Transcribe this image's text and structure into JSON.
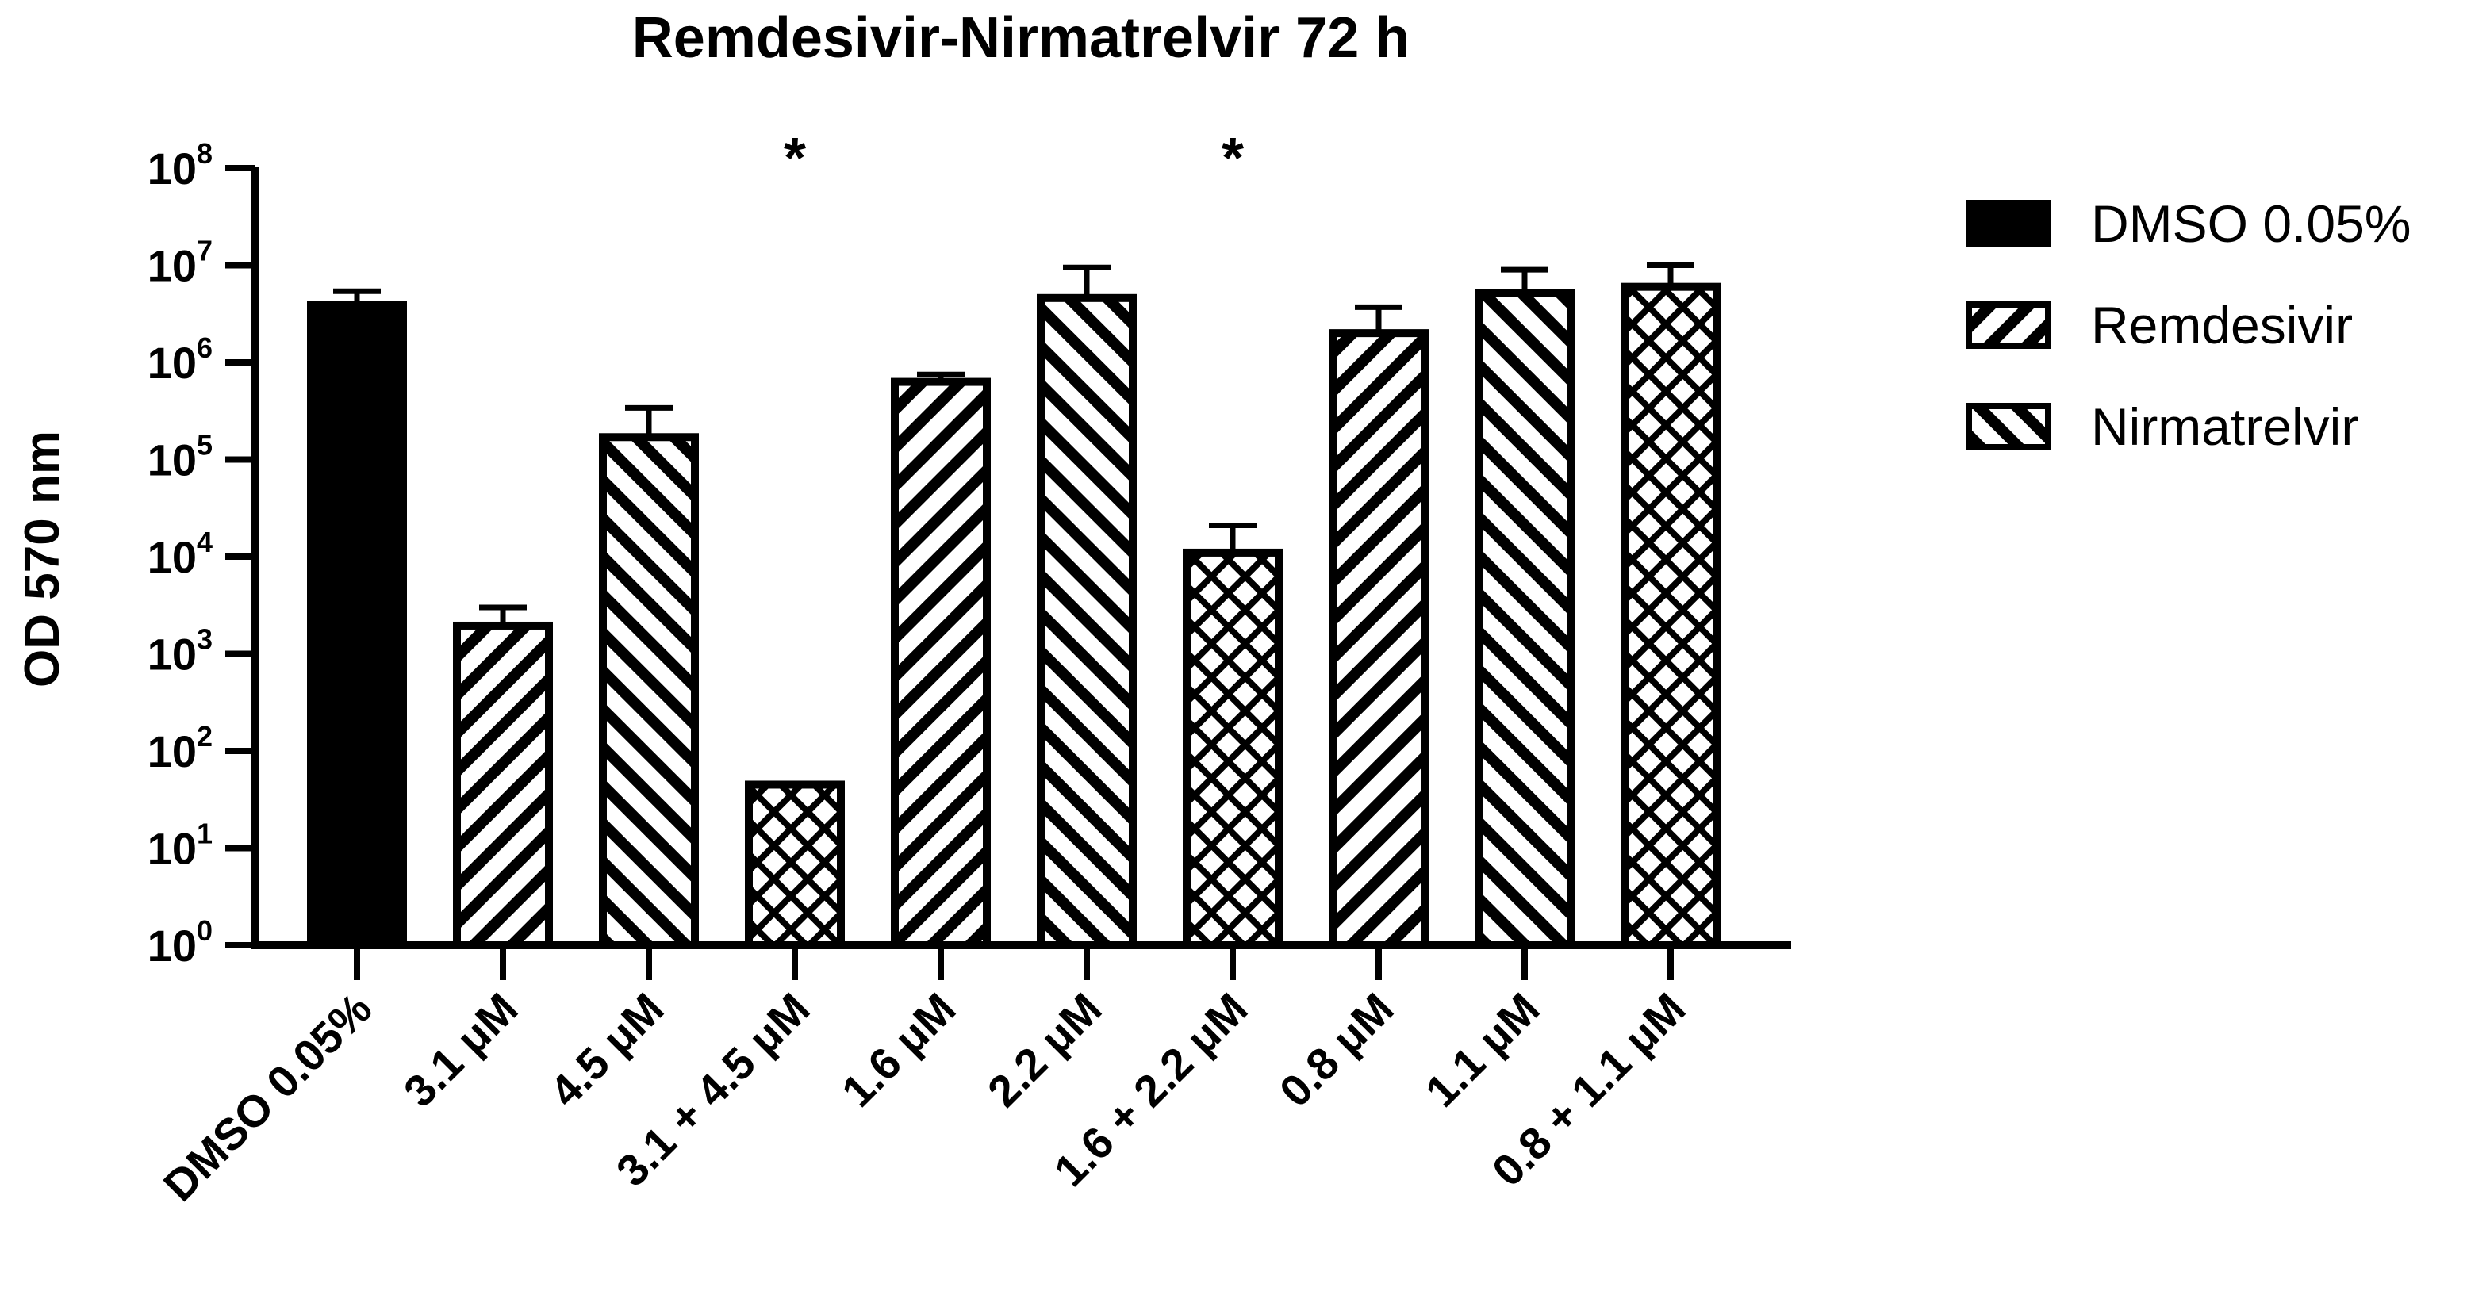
{
  "chart_data": {
    "type": "bar",
    "title": "Remdesivir-Nirmatrelvir 72 h",
    "ylabel": "OD 570 nm",
    "xlabel": "",
    "yscale": "log",
    "ylim": [
      1,
      100000000
    ],
    "yticks": [
      {
        "base": "10",
        "exp": "0"
      },
      {
        "base": "10",
        "exp": "1"
      },
      {
        "base": "10",
        "exp": "2"
      },
      {
        "base": "10",
        "exp": "3"
      },
      {
        "base": "10",
        "exp": "4"
      },
      {
        "base": "10",
        "exp": "5"
      },
      {
        "base": "10",
        "exp": "6"
      },
      {
        "base": "10",
        "exp": "7"
      },
      {
        "base": "10",
        "exp": "8"
      }
    ],
    "categories": [
      "DMSO 0.05%",
      "3.1 μM",
      "4.5 μM",
      "3.1 + 4.5 μM",
      "1.6 μM",
      "2.2 μM",
      "1.6 + 2.2 μM",
      "0.8 μM",
      "1.1 μM",
      "0.8 + 1.1 μM"
    ],
    "values": [
      3900000,
      1950,
      170000,
      45,
      630000,
      4600000,
      11000,
      2000000,
      5200000,
      6000000
    ],
    "errors_upper": [
      5400000,
      3000,
      340000,
      45,
      750000,
      9500000,
      21000,
      3700000,
      9000000,
      10000000
    ],
    "patterns": [
      "solid",
      "back-diagonal",
      "forward-diagonal",
      "crosshatch",
      "back-diagonal",
      "forward-diagonal",
      "crosshatch",
      "back-diagonal",
      "forward-diagonal",
      "crosshatch"
    ],
    "significance": [
      "",
      "",
      "",
      "*",
      "",
      "",
      "*",
      "",
      "",
      ""
    ],
    "legend": {
      "position": "right",
      "entries": [
        {
          "label": "DMSO 0.05%",
          "pattern": "solid"
        },
        {
          "label": "Remdesivir",
          "pattern": "back-diagonal"
        },
        {
          "label": "Nirmatrelvir",
          "pattern": "forward-diagonal"
        }
      ]
    },
    "grid": false,
    "colors": {
      "bar_stroke": "#000000",
      "bar_fill": "#ffffff",
      "solid": "#000000"
    }
  }
}
